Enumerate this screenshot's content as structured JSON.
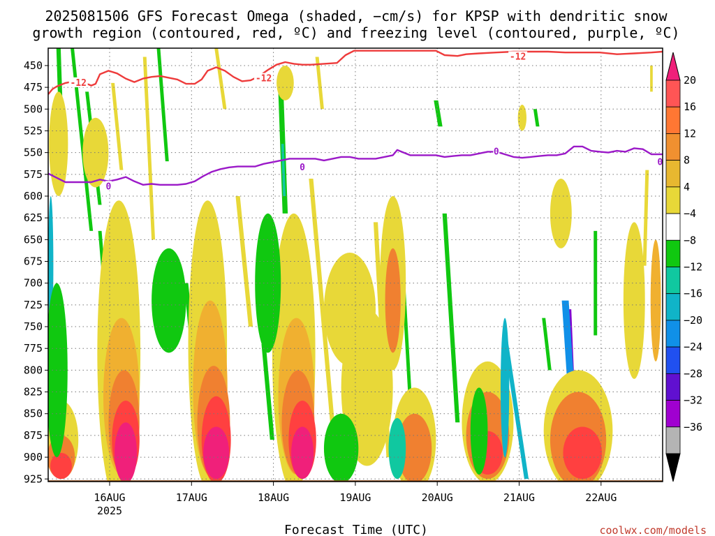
{
  "title_line1": "2025081506 GFS Forecast Omega (shaded, −cm/s) for KPSP with dendritic snow",
  "title_line2": "growth region (contoured, red, ºC) and freezing level (contoured, purple, ºC)",
  "credit": "coolwx.com/models",
  "colors": {
    "bg": "#ffffff",
    "snow_growth_contour": "#ee3b3b",
    "freezing_contour": "#9b19c8",
    "ground": "#8b4513",
    "grid": "#888888"
  },
  "chart_data": {
    "type": "heatmap",
    "xlabel": "Forecast Time (UTC)",
    "ylabel": "",
    "y_axis": "pressure (inverted)",
    "ylim": [
      925,
      430
    ],
    "y_ticks": [
      "450",
      "475",
      "500",
      "525",
      "550",
      "575",
      "600",
      "625",
      "650",
      "675",
      "700",
      "725",
      "750",
      "775",
      "800",
      "825",
      "850",
      "875",
      "900",
      "925"
    ],
    "x_ticks": [
      {
        "label": "16AUG",
        "sub": "2025"
      },
      {
        "label": "17AUG",
        "sub": ""
      },
      {
        "label": "18AUG",
        "sub": ""
      },
      {
        "label": "19AUG",
        "sub": ""
      },
      {
        "label": "20AUG",
        "sub": ""
      },
      {
        "label": "21AUG",
        "sub": ""
      },
      {
        "label": "22AUG",
        "sub": ""
      }
    ],
    "colorbar": {
      "labels": [
        "20",
        "16",
        "12",
        "8",
        "4",
        "−4",
        "−8",
        "−12",
        "−16",
        "−20",
        "−24",
        "−28",
        "−32",
        "−36"
      ],
      "colors": [
        "#ff5555",
        "#ff7733",
        "#f09030",
        "#e8b830",
        "#e8d838",
        "#ffffff",
        "#10c810",
        "#10c8a0",
        "#10b4c8",
        "#1090e8",
        "#2050f0",
        "#6010d0",
        "#a000d0",
        "#b4b4b4"
      ],
      "top_arrow_color": "#f0207a",
      "bottom_arrow_color": "#000000"
    },
    "shade_colors": {
      "y4": "#e8d838",
      "o8": "#f0b030",
      "o12": "#f08030",
      "r16": "#ff4040",
      "m20": "#f0207a",
      "g8": "#10c810",
      "t12": "#10c8a0",
      "c16": "#10b4c8",
      "b20": "#1090e8",
      "p28": "#8000d0"
    },
    "series": [
      {
        "name": "-12",
        "kind": "dendritic snow growth region",
        "color": "#ee3b3b",
        "points": [
          [
            0,
            483
          ],
          [
            0.05,
            477
          ],
          [
            0.1,
            474
          ],
          [
            0.2,
            470
          ],
          [
            0.3,
            468
          ],
          [
            0.4,
            469
          ],
          [
            0.5,
            473
          ],
          [
            0.55,
            471
          ],
          [
            0.6,
            460
          ],
          [
            0.7,
            456
          ],
          [
            0.8,
            459
          ],
          [
            0.9,
            465
          ],
          [
            1.0,
            469
          ],
          [
            1.1,
            465
          ],
          [
            1.2,
            463
          ],
          [
            1.3,
            462
          ],
          [
            1.4,
            464
          ],
          [
            1.5,
            466
          ],
          [
            1.6,
            471
          ],
          [
            1.7,
            471
          ],
          [
            1.78,
            466
          ],
          [
            1.85,
            456
          ],
          [
            1.95,
            452
          ],
          [
            2.05,
            456
          ],
          [
            2.15,
            463
          ],
          [
            2.25,
            468
          ],
          [
            2.35,
            467
          ],
          [
            2.45,
            462
          ],
          [
            2.55,
            455
          ],
          [
            2.65,
            449
          ],
          [
            2.75,
            446
          ],
          [
            2.85,
            448
          ],
          [
            2.95,
            449
          ],
          [
            3.05,
            449
          ],
          [
            3.2,
            448
          ],
          [
            3.35,
            447
          ],
          [
            3.45,
            438
          ],
          [
            3.55,
            433
          ],
          [
            3.8,
            433
          ],
          [
            4.0,
            433
          ],
          [
            4.2,
            433
          ],
          [
            4.5,
            433
          ],
          [
            4.6,
            438
          ],
          [
            4.75,
            439
          ],
          [
            4.85,
            437
          ],
          [
            5.0,
            436
          ],
          [
            5.2,
            435
          ],
          [
            5.4,
            434
          ],
          [
            5.6,
            434
          ],
          [
            5.8,
            434
          ],
          [
            6.0,
            435
          ],
          [
            6.2,
            435
          ],
          [
            6.4,
            435
          ],
          [
            6.6,
            437
          ],
          [
            6.8,
            436
          ],
          [
            7.0,
            435
          ],
          [
            7.13,
            434
          ]
        ]
      },
      {
        "name": "0",
        "kind": "freezing level",
        "color": "#9b19c8",
        "points": [
          [
            0,
            574
          ],
          [
            0.1,
            579
          ],
          [
            0.2,
            584
          ],
          [
            0.3,
            584
          ],
          [
            0.4,
            584
          ],
          [
            0.5,
            584
          ],
          [
            0.6,
            581
          ],
          [
            0.7,
            583
          ],
          [
            0.8,
            581
          ],
          [
            0.9,
            578
          ],
          [
            1.0,
            583
          ],
          [
            1.1,
            587
          ],
          [
            1.2,
            586
          ],
          [
            1.3,
            587
          ],
          [
            1.4,
            587
          ],
          [
            1.5,
            587
          ],
          [
            1.6,
            586
          ],
          [
            1.7,
            583
          ],
          [
            1.8,
            577
          ],
          [
            1.9,
            572
          ],
          [
            2.0,
            569
          ],
          [
            2.1,
            567
          ],
          [
            2.2,
            566
          ],
          [
            2.3,
            566
          ],
          [
            2.4,
            566
          ],
          [
            2.5,
            563
          ],
          [
            2.6,
            561
          ],
          [
            2.7,
            559
          ],
          [
            2.8,
            557
          ],
          [
            2.9,
            557
          ],
          [
            3.0,
            557
          ],
          [
            3.1,
            557
          ],
          [
            3.2,
            559
          ],
          [
            3.3,
            557
          ],
          [
            3.4,
            555
          ],
          [
            3.5,
            555
          ],
          [
            3.6,
            557
          ],
          [
            3.7,
            557
          ],
          [
            3.8,
            557
          ],
          [
            3.9,
            555
          ],
          [
            4.0,
            553
          ],
          [
            4.05,
            547
          ],
          [
            4.1,
            549
          ],
          [
            4.2,
            553
          ],
          [
            4.3,
            553
          ],
          [
            4.4,
            553
          ],
          [
            4.5,
            553
          ],
          [
            4.6,
            555
          ],
          [
            4.7,
            554
          ],
          [
            4.8,
            553
          ],
          [
            4.9,
            553
          ],
          [
            5.0,
            551
          ],
          [
            5.1,
            549
          ],
          [
            5.2,
            549
          ],
          [
            5.3,
            552
          ],
          [
            5.4,
            555
          ],
          [
            5.5,
            556
          ],
          [
            5.6,
            555
          ],
          [
            5.7,
            554
          ],
          [
            5.8,
            553
          ],
          [
            5.9,
            553
          ],
          [
            6.0,
            551
          ],
          [
            6.1,
            543
          ],
          [
            6.2,
            543
          ],
          [
            6.3,
            548
          ],
          [
            6.4,
            549
          ],
          [
            6.5,
            550
          ],
          [
            6.6,
            548
          ],
          [
            6.7,
            549
          ],
          [
            6.8,
            545
          ],
          [
            6.9,
            546
          ],
          [
            7.0,
            552
          ],
          [
            7.13,
            552
          ]
        ]
      }
    ],
    "contour_labels": [
      {
        "text": "-12",
        "x": 0.35,
        "p": 470,
        "color": "#ee3b3b"
      },
      {
        "text": "-12",
        "x": 2.5,
        "p": 465,
        "color": "#ee3b3b"
      },
      {
        "text": "-12",
        "x": 5.45,
        "p": 440,
        "color": "#ee3b3b"
      },
      {
        "text": "0",
        "x": 0.7,
        "p": 589,
        "color": "#9b19c8"
      },
      {
        "text": "0",
        "x": 2.95,
        "p": 567,
        "color": "#9b19c8"
      },
      {
        "text": "0",
        "x": 5.2,
        "p": 549,
        "color": "#9b19c8"
      },
      {
        "text": "0",
        "x": 7.1,
        "p": 561,
        "color": "#9b19c8"
      }
    ],
    "shading_blobs": [
      {
        "x": 0.82,
        "p": 780,
        "w": 0.5,
        "h": 350,
        "c": "y4"
      },
      {
        "x": 0.85,
        "p": 830,
        "w": 0.42,
        "h": 180,
        "c": "o8"
      },
      {
        "x": 0.88,
        "p": 860,
        "w": 0.36,
        "h": 120,
        "c": "o12"
      },
      {
        "x": 0.9,
        "p": 880,
        "w": 0.32,
        "h": 90,
        "c": "r16"
      },
      {
        "x": 0.9,
        "p": 895,
        "w": 0.26,
        "h": 70,
        "c": "m20"
      },
      {
        "x": 1.85,
        "p": 770,
        "w": 0.45,
        "h": 330,
        "c": "y4"
      },
      {
        "x": 1.88,
        "p": 820,
        "w": 0.4,
        "h": 200,
        "c": "o8"
      },
      {
        "x": 1.92,
        "p": 860,
        "w": 0.38,
        "h": 130,
        "c": "o12"
      },
      {
        "x": 1.95,
        "p": 880,
        "w": 0.34,
        "h": 100,
        "c": "r16"
      },
      {
        "x": 1.95,
        "p": 895,
        "w": 0.3,
        "h": 60,
        "c": "m20"
      },
      {
        "x": 2.85,
        "p": 780,
        "w": 0.5,
        "h": 320,
        "c": "y4"
      },
      {
        "x": 2.88,
        "p": 830,
        "w": 0.42,
        "h": 180,
        "c": "o8"
      },
      {
        "x": 2.9,
        "p": 860,
        "w": 0.38,
        "h": 120,
        "c": "o12"
      },
      {
        "x": 2.95,
        "p": 880,
        "w": 0.32,
        "h": 90,
        "c": "r16"
      },
      {
        "x": 2.95,
        "p": 895,
        "w": 0.26,
        "h": 60,
        "c": "m20"
      },
      {
        "x": 0.15,
        "p": 880,
        "w": 0.4,
        "h": 90,
        "c": "y4"
      },
      {
        "x": 0.15,
        "p": 900,
        "w": 0.32,
        "h": 50,
        "c": "o12"
      },
      {
        "x": 0.15,
        "p": 910,
        "w": 0.25,
        "h": 30,
        "c": "r16"
      },
      {
        "x": 4.0,
        "p": 700,
        "w": 0.3,
        "h": 200,
        "c": "y4"
      },
      {
        "x": 4.0,
        "p": 720,
        "w": 0.18,
        "h": 120,
        "c": "o12"
      },
      {
        "x": 4.25,
        "p": 880,
        "w": 0.5,
        "h": 120,
        "c": "y4"
      },
      {
        "x": 4.25,
        "p": 890,
        "w": 0.4,
        "h": 80,
        "c": "o12"
      },
      {
        "x": 5.1,
        "p": 860,
        "w": 0.6,
        "h": 140,
        "c": "y4"
      },
      {
        "x": 5.1,
        "p": 875,
        "w": 0.5,
        "h": 100,
        "c": "o12"
      },
      {
        "x": 5.1,
        "p": 895,
        "w": 0.35,
        "h": 50,
        "c": "r16"
      },
      {
        "x": 6.15,
        "p": 870,
        "w": 0.8,
        "h": 140,
        "c": "y4"
      },
      {
        "x": 6.15,
        "p": 880,
        "w": 0.65,
        "h": 110,
        "c": "o12"
      },
      {
        "x": 6.2,
        "p": 895,
        "w": 0.45,
        "h": 60,
        "c": "r16"
      },
      {
        "x": 3.7,
        "p": 820,
        "w": 0.6,
        "h": 180,
        "c": "y4"
      },
      {
        "x": 3.5,
        "p": 730,
        "w": 0.6,
        "h": 130,
        "c": "y4"
      },
      {
        "x": 6.8,
        "p": 720,
        "w": 0.25,
        "h": 180,
        "c": "y4"
      },
      {
        "x": 7.05,
        "p": 720,
        "w": 0.12,
        "h": 140,
        "c": "o8"
      },
      {
        "x": 0.12,
        "p": 540,
        "w": 0.22,
        "h": 120,
        "c": "y4"
      },
      {
        "x": 1.4,
        "p": 720,
        "w": 0.4,
        "h": 120,
        "c": "g8"
      },
      {
        "x": 2.55,
        "p": 700,
        "w": 0.3,
        "h": 160,
        "c": "g8"
      },
      {
        "x": 3.4,
        "p": 890,
        "w": 0.4,
        "h": 80,
        "c": "g8"
      },
      {
        "x": 4.05,
        "p": 890,
        "w": 0.2,
        "h": 70,
        "c": "t12"
      },
      {
        "x": 5.0,
        "p": 870,
        "w": 0.2,
        "h": 100,
        "c": "g8"
      },
      {
        "x": 5.3,
        "p": 820,
        "w": 0.1,
        "h": 160,
        "c": "c16"
      },
      {
        "x": 0.03,
        "p": 680,
        "w": 0.06,
        "h": 160,
        "c": "c16"
      },
      {
        "x": 0.1,
        "p": 800,
        "w": 0.25,
        "h": 200,
        "c": "g8"
      },
      {
        "x": 2.75,
        "p": 470,
        "w": 0.2,
        "h": 40,
        "c": "y4"
      },
      {
        "x": 0.55,
        "p": 550,
        "w": 0.3,
        "h": 80,
        "c": "y4"
      },
      {
        "x": 5.95,
        "p": 620,
        "w": 0.25,
        "h": 80,
        "c": "y4"
      },
      {
        "x": 5.5,
        "p": 510,
        "w": 0.1,
        "h": 30,
        "c": "y4"
      }
    ],
    "shading_streaks": [
      {
        "x0": 0.28,
        "x1": 0.5,
        "p0": 430,
        "p1": 640,
        "w": 0.04,
        "c": "g8"
      },
      {
        "x0": 0.12,
        "x1": 0.15,
        "p0": 430,
        "p1": 520,
        "w": 0.05,
        "c": "g8"
      },
      {
        "x0": 0.45,
        "x1": 0.6,
        "p0": 480,
        "p1": 610,
        "w": 0.04,
        "c": "g8"
      },
      {
        "x0": 1.28,
        "x1": 1.38,
        "p0": 430,
        "p1": 560,
        "w": 0.04,
        "c": "g8"
      },
      {
        "x0": 2.7,
        "x1": 2.75,
        "p0": 480,
        "p1": 620,
        "w": 0.06,
        "c": "g8"
      },
      {
        "x0": 2.72,
        "x1": 2.74,
        "p0": 540,
        "p1": 600,
        "w": 0.03,
        "c": "t12"
      },
      {
        "x0": 5.65,
        "x1": 5.68,
        "p0": 500,
        "p1": 520,
        "w": 0.04,
        "c": "g8"
      },
      {
        "x0": 7.0,
        "x1": 7.0,
        "p0": 450,
        "p1": 480,
        "w": 0.03,
        "c": "y4"
      },
      {
        "x0": 6.05,
        "x1": 6.1,
        "p0": 730,
        "p1": 850,
        "w": 0.04,
        "c": "p28"
      },
      {
        "x0": 6.0,
        "x1": 6.12,
        "p0": 720,
        "p1": 900,
        "w": 0.08,
        "c": "b20"
      },
      {
        "x0": 5.3,
        "x1": 5.55,
        "p0": 760,
        "p1": 925,
        "w": 0.05,
        "c": "c16"
      },
      {
        "x0": 4.1,
        "x1": 4.25,
        "p0": 660,
        "p1": 920,
        "w": 0.04,
        "c": "g8"
      },
      {
        "x0": 3.05,
        "x1": 3.35,
        "p0": 580,
        "p1": 920,
        "w": 0.05,
        "c": "y4"
      },
      {
        "x0": 2.2,
        "x1": 2.35,
        "p0": 600,
        "p1": 750,
        "w": 0.05,
        "c": "y4"
      },
      {
        "x0": 3.8,
        "x1": 3.95,
        "p0": 630,
        "p1": 900,
        "w": 0.05,
        "c": "y4"
      },
      {
        "x0": 6.35,
        "x1": 6.35,
        "p0": 640,
        "p1": 760,
        "w": 0.04,
        "c": "g8"
      },
      {
        "x0": 6.95,
        "x1": 6.92,
        "p0": 570,
        "p1": 680,
        "w": 0.04,
        "c": "y4"
      },
      {
        "x0": 5.75,
        "x1": 5.82,
        "p0": 740,
        "p1": 800,
        "w": 0.04,
        "c": "g8"
      },
      {
        "x0": 0.6,
        "x1": 0.7,
        "p0": 640,
        "p1": 760,
        "w": 0.04,
        "c": "g8"
      },
      {
        "x0": 1.6,
        "x1": 1.7,
        "p0": 700,
        "p1": 800,
        "w": 0.05,
        "c": "g8"
      },
      {
        "x0": 2.5,
        "x1": 2.6,
        "p0": 770,
        "p1": 880,
        "w": 0.05,
        "c": "g8"
      },
      {
        "x0": 4.6,
        "x1": 4.75,
        "p0": 620,
        "p1": 860,
        "w": 0.05,
        "c": "g8"
      },
      {
        "x0": 1.95,
        "x1": 2.05,
        "p0": 430,
        "p1": 500,
        "w": 0.04,
        "c": "y4"
      },
      {
        "x0": 0.75,
        "x1": 0.85,
        "p0": 470,
        "p1": 570,
        "w": 0.04,
        "c": "y4"
      },
      {
        "x0": 1.12,
        "x1": 1.22,
        "p0": 440,
        "p1": 650,
        "w": 0.04,
        "c": "y4"
      },
      {
        "x0": 3.12,
        "x1": 3.18,
        "p0": 440,
        "p1": 500,
        "w": 0.04,
        "c": "y4"
      },
      {
        "x0": 4.5,
        "x1": 4.55,
        "p0": 490,
        "p1": 520,
        "w": 0.05,
        "c": "g8"
      }
    ]
  }
}
